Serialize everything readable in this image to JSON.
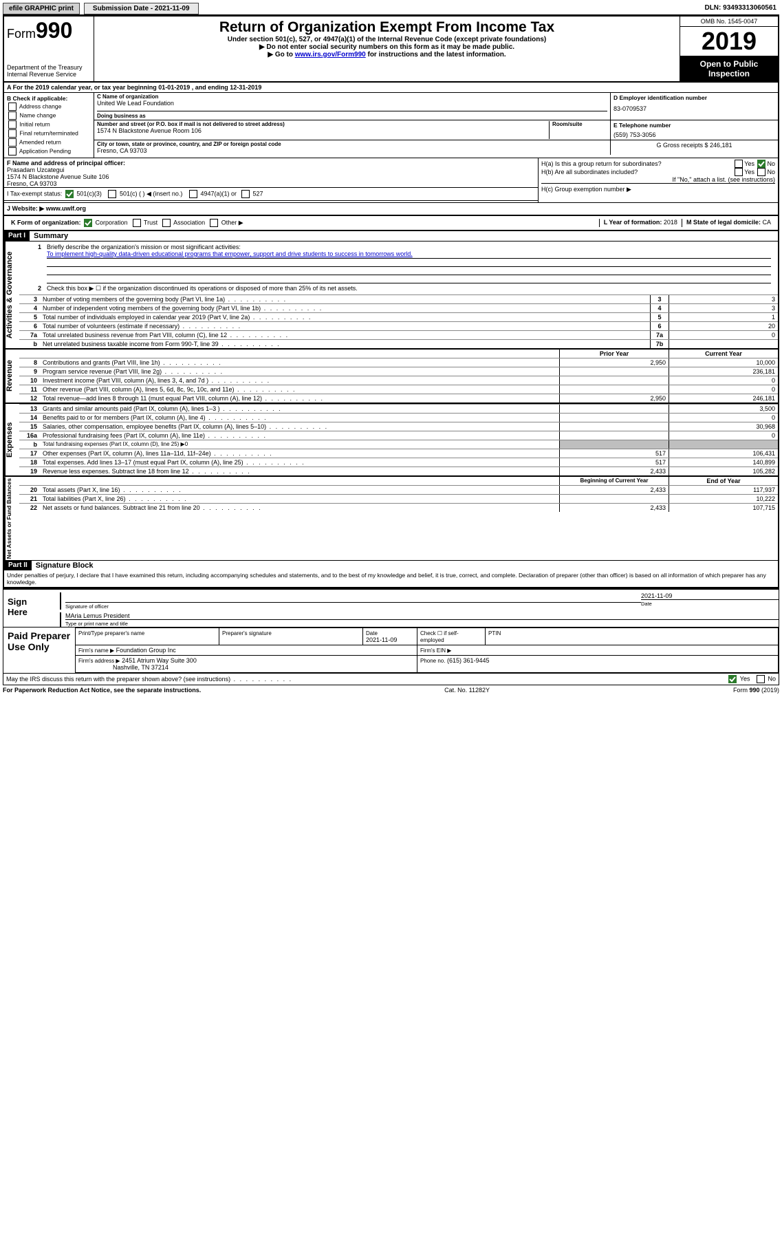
{
  "top": {
    "efile": "efile GRAPHIC print",
    "subdate_label": "Submission Date - 2021-11-09",
    "dln": "DLN: 93493313060561"
  },
  "header": {
    "form_word": "Form",
    "form_num": "990",
    "title": "Return of Organization Exempt From Income Tax",
    "sub1": "Under section 501(c), 527, or 4947(a)(1) of the Internal Revenue Code (except private foundations)",
    "sub2": "▶ Do not enter social security numbers on this form as it may be made public.",
    "sub3_a": "▶ Go to ",
    "sub3_link": "www.irs.gov/Form990",
    "sub3_b": " for instructions and the latest information.",
    "dept1": "Department of the Treasury",
    "dept2": "Internal Revenue Service",
    "omb": "OMB No. 1545-0047",
    "year": "2019",
    "open": "Open to Public Inspection"
  },
  "lineA": "A   For the 2019 calendar year, or tax year beginning 01-01-2019    , and ending 12-31-2019",
  "B": {
    "lab": "B Check if applicable:",
    "addr": "Address change",
    "name": "Name change",
    "init": "Initial return",
    "final": "Final return/terminated",
    "amend": "Amended return",
    "app": "Application Pending"
  },
  "C": {
    "namelab": "C Name of organization",
    "name": "United We Lead Foundation",
    "dba": "Doing business as",
    "streetlab": "Number and street (or P.O. box if mail is not delivered to street address)",
    "suite": "Room/suite",
    "street": "1574 N Blackstone Avenue Room 106",
    "citylab": "City or town, state or province, country, and ZIP or foreign postal code",
    "city": "Fresno, CA  93703"
  },
  "D": {
    "lab": "D Employer identification number",
    "val": "83-0709537"
  },
  "E": {
    "lab": "E Telephone number",
    "val": "(559) 753-3056"
  },
  "G": {
    "lab": "G Gross receipts $",
    "val": "246,181"
  },
  "F": {
    "lab": "F  Name and address of principal officer:",
    "name": "Prasadam Uzcategui",
    "addr1": "1574 N Blackstone Avenue Suite 106",
    "addr2": "Fresno, CA  93703"
  },
  "H": {
    "a": "H(a)  Is this a group return for subordinates?",
    "b": "H(b)  Are all subordinates included?",
    "b2": "If \"No,\" attach a list. (see instructions)",
    "c": "H(c)  Group exemption number ▶",
    "yes": "Yes",
    "no": "No"
  },
  "I": {
    "lab": "I   Tax-exempt status:",
    "a": "501(c)(3)",
    "b": "501(c) (  ) ◀ (insert no.)",
    "c": "4947(a)(1) or",
    "d": "527"
  },
  "J": {
    "lab": "J   Website: ▶",
    "val": "www.uwlf.org"
  },
  "K": {
    "lab": "K Form of organization:",
    "corp": "Corporation",
    "trust": "Trust",
    "assoc": "Association",
    "other": "Other ▶"
  },
  "L": {
    "lab": "L Year of formation:",
    "val": "2018"
  },
  "M": {
    "lab": "M State of legal domicile:",
    "val": "CA"
  },
  "part1": {
    "hdr": "Part I",
    "title": "Summary",
    "side_ag": "Activities & Governance",
    "side_rev": "Revenue",
    "side_exp": "Expenses",
    "side_net": "Net Assets or Fund Balances",
    "q1a": "Briefly describe the organization's mission or most significant activities:",
    "q1b": "To implement high-quality data-driven educational programs that empower, support and drive students to success in tomorrows world.",
    "q2": "Check this box ▶ ☐  if the organization discontinued its operations or disposed of more than 25% of its net assets.",
    "rows_ag": [
      {
        "n": "3",
        "t": "Number of voting members of the governing body (Part VI, line 1a)",
        "b": "3",
        "v": "3"
      },
      {
        "n": "4",
        "t": "Number of independent voting members of the governing body (Part VI, line 1b)",
        "b": "4",
        "v": "3"
      },
      {
        "n": "5",
        "t": "Total number of individuals employed in calendar year 2019 (Part V, line 2a)",
        "b": "5",
        "v": "1"
      },
      {
        "n": "6",
        "t": "Total number of volunteers (estimate if necessary)",
        "b": "6",
        "v": "20"
      },
      {
        "n": "7a",
        "t": "Total unrelated business revenue from Part VIII, column (C), line 12",
        "b": "7a",
        "v": "0"
      },
      {
        "n": "b",
        "t": "Net unrelated business taxable income from Form 990-T, line 39",
        "b": "7b",
        "v": ""
      }
    ],
    "yr_prior": "Prior Year",
    "yr_curr": "Current Year",
    "rows_rev": [
      {
        "n": "8",
        "t": "Contributions and grants (Part VIII, line 1h)",
        "p": "2,950",
        "c": "10,000"
      },
      {
        "n": "9",
        "t": "Program service revenue (Part VIII, line 2g)",
        "p": "",
        "c": "236,181"
      },
      {
        "n": "10",
        "t": "Investment income (Part VIII, column (A), lines 3, 4, and 7d )",
        "p": "",
        "c": "0"
      },
      {
        "n": "11",
        "t": "Other revenue (Part VIII, column (A), lines 5, 6d, 8c, 9c, 10c, and 11e)",
        "p": "",
        "c": "0"
      },
      {
        "n": "12",
        "t": "Total revenue—add lines 8 through 11 (must equal Part VIII, column (A), line 12)",
        "p": "2,950",
        "c": "246,181"
      }
    ],
    "rows_exp": [
      {
        "n": "13",
        "t": "Grants and similar amounts paid (Part IX, column (A), lines 1–3 )",
        "p": "",
        "c": "3,500"
      },
      {
        "n": "14",
        "t": "Benefits paid to or for members (Part IX, column (A), line 4)",
        "p": "",
        "c": "0"
      },
      {
        "n": "15",
        "t": "Salaries, other compensation, employee benefits (Part IX, column (A), lines 5–10)",
        "p": "",
        "c": "30,968"
      },
      {
        "n": "16a",
        "t": "Professional fundraising fees (Part IX, column (A), line 11e)",
        "p": "",
        "c": "0"
      },
      {
        "n": "b",
        "t": "Total fundraising expenses (Part IX, column (D), line 25) ▶0",
        "p": "GRAY",
        "c": "GRAY",
        "small": true
      },
      {
        "n": "17",
        "t": "Other expenses (Part IX, column (A), lines 11a–11d, 11f–24e)",
        "p": "517",
        "c": "106,431"
      },
      {
        "n": "18",
        "t": "Total expenses. Add lines 13–17 (must equal Part IX, column (A), line 25)",
        "p": "517",
        "c": "140,899"
      },
      {
        "n": "19",
        "t": "Revenue less expenses. Subtract line 18 from line 12",
        "p": "2,433",
        "c": "105,282"
      }
    ],
    "yr_beg": "Beginning of Current Year",
    "yr_end": "End of Year",
    "rows_net": [
      {
        "n": "20",
        "t": "Total assets (Part X, line 16)",
        "p": "2,433",
        "c": "117,937"
      },
      {
        "n": "21",
        "t": "Total liabilities (Part X, line 26)",
        "p": "",
        "c": "10,222"
      },
      {
        "n": "22",
        "t": "Net assets or fund balances. Subtract line 21 from line 20",
        "p": "2,433",
        "c": "107,715"
      }
    ]
  },
  "part2": {
    "hdr": "Part II",
    "title": "Signature Block",
    "perjury": "Under penalties of perjury, I declare that I have examined this return, including accompanying schedules and statements, and to the best of my knowledge and belief, it is true, correct, and complete. Declaration of preparer (other than officer) is based on all information of which preparer has any knowledge."
  },
  "sign": {
    "here": "Sign Here",
    "siglab": "Signature of officer",
    "date": "2021-11-09",
    "datelab": "Date",
    "name": "MAria Lemus  President",
    "namelab": "Type or print name and title"
  },
  "paid": {
    "lab": "Paid Preparer Use Only",
    "c1": "Print/Type preparer's name",
    "c2": "Preparer's signature",
    "c3": "Date",
    "c3v": "2021-11-09",
    "c4": "Check ☐ if self-employed",
    "c5": "PTIN",
    "firmname_l": "Firm's name    ▶",
    "firmname": "Foundation Group Inc",
    "firmein_l": "Firm's EIN ▶",
    "firmaddr_l": "Firm's address ▶",
    "firmaddr1": "2451 Atrium Way Suite 300",
    "firmaddr2": "Nashville, TN  37214",
    "phone_l": "Phone no.",
    "phone": "(615) 361-9445"
  },
  "discuss": {
    "q": "May the IRS discuss this return with the preparer shown above? (see instructions)",
    "yes": "Yes",
    "no": "No"
  },
  "footer": {
    "l": "For Paperwork Reduction Act Notice, see the separate instructions.",
    "m": "Cat. No. 11282Y",
    "r": "Form 990 (2019)"
  }
}
